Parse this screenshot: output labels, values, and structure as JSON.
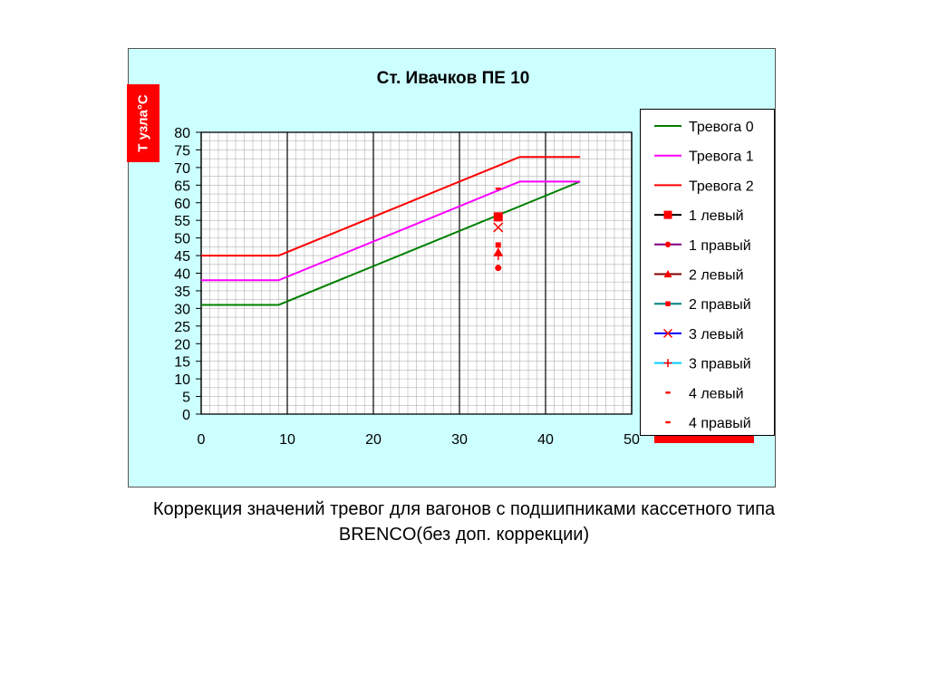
{
  "chart_data": {
    "type": "line",
    "title": "Ст. Ивачков ПЕ 10",
    "ylabel": "Т узла°С",
    "xlabel": "",
    "xlim": [
      0,
      50
    ],
    "ylim": [
      0,
      80
    ],
    "x_ticks": [
      0,
      10,
      20,
      30,
      40,
      50
    ],
    "y_ticks": [
      0,
      5,
      10,
      15,
      20,
      25,
      30,
      35,
      40,
      45,
      50,
      55,
      60,
      65,
      70,
      75,
      80
    ],
    "grid": true,
    "legend_position": "right",
    "series": [
      {
        "name": "Тревога 0",
        "kind": "line",
        "color": "#008000",
        "x": [
          0,
          9,
          44
        ],
        "y": [
          31,
          31,
          66
        ]
      },
      {
        "name": "Тревога 1",
        "kind": "line",
        "color": "#ff00ff",
        "x": [
          0,
          9,
          37,
          44
        ],
        "y": [
          38,
          38,
          66,
          66
        ]
      },
      {
        "name": "Тревога 2",
        "kind": "line",
        "color": "#ff0000",
        "x": [
          0,
          9,
          37,
          44
        ],
        "y": [
          45,
          45,
          73,
          73
        ]
      },
      {
        "name": "1 левый",
        "kind": "marker",
        "marker": "square",
        "color": "#ff0000",
        "line_color": "#000000",
        "x": [
          34.5
        ],
        "y": [
          56
        ]
      },
      {
        "name": "1 правый",
        "kind": "marker",
        "marker": "circle",
        "color": "#ff0000",
        "line_color": "#800080",
        "x": [
          34.5
        ],
        "y": [
          41.5
        ]
      },
      {
        "name": "2 левый",
        "kind": "marker",
        "marker": "triangle",
        "color": "#ff0000",
        "line_color": "#800000",
        "x": [
          34.5
        ],
        "y": [
          46
        ]
      },
      {
        "name": "2 правый",
        "kind": "marker",
        "marker": "small-square",
        "color": "#ff0000",
        "line_color": "#008080",
        "x": [
          34.5
        ],
        "y": [
          48
        ]
      },
      {
        "name": "3 левый",
        "kind": "marker",
        "marker": "x",
        "color": "#ff0000",
        "line_color": "#0000ff",
        "x": [
          34.5
        ],
        "y": [
          53
        ]
      },
      {
        "name": "3 правый",
        "kind": "marker",
        "marker": "plus",
        "color": "#ff0000",
        "line_color": "#00ccff",
        "x": [
          34.5
        ],
        "y": [
          45
        ]
      },
      {
        "name": "4 левый",
        "kind": "marker",
        "marker": "dash",
        "color": "#ff0000",
        "line_color": "#ffffff",
        "x": [
          34.5
        ],
        "y": [
          64
        ]
      },
      {
        "name": "4 правый",
        "kind": "marker",
        "marker": "dash",
        "color": "#ff0000",
        "line_color": "#ffffff",
        "x": [
          34.5
        ],
        "y": [
          55
        ]
      }
    ]
  },
  "caption": {
    "line1": "Коррекция значений тревог для вагонов с подшипниками кассетного типа",
    "line2": "BRENCO(без доп. коррекции)"
  }
}
